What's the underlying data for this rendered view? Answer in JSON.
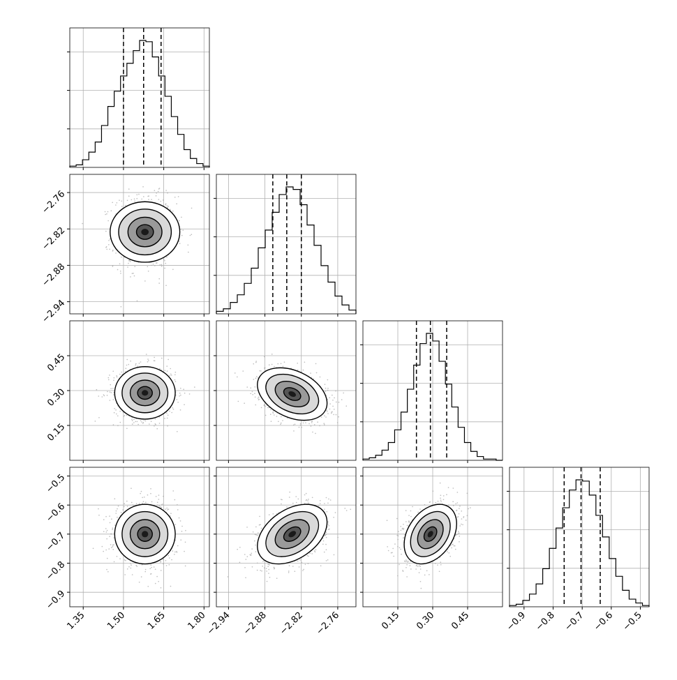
{
  "chart_data": {
    "type": "corner",
    "grid": true,
    "params": [
      {
        "range": [
          1.3,
          1.82
        ],
        "ticks": [
          "1.35",
          "1.50",
          "1.65",
          "1.80"
        ],
        "tick_values": [
          1.35,
          1.5,
          1.65,
          1.8
        ],
        "quantiles": [
          1.5,
          1.575,
          1.64
        ],
        "hist": [
          1,
          2,
          6,
          12,
          20,
          33,
          48,
          60,
          72,
          82,
          92,
          100,
          99,
          87,
          72,
          56,
          40,
          26,
          14,
          7,
          3,
          1
        ]
      },
      {
        "range": [
          -2.96,
          -2.73
        ],
        "ticks": [
          "−2.94",
          "−2.88",
          "−2.82",
          "−2.76"
        ],
        "tick_values": [
          -2.94,
          -2.88,
          -2.82,
          -2.76
        ],
        "quantiles": [
          -2.867,
          -2.844,
          -2.82
        ],
        "hist": [
          2,
          4,
          9,
          15,
          24,
          36,
          52,
          66,
          80,
          94,
          100,
          98,
          86,
          70,
          54,
          38,
          25,
          14,
          7,
          3
        ]
      },
      {
        "range": [
          0.0,
          0.6
        ],
        "ticks": [
          "0.15",
          "0.30",
          "0.45"
        ],
        "tick_values": [
          0.15,
          0.3,
          0.45
        ],
        "quantiles": [
          0.23,
          0.29,
          0.36
        ],
        "hist": [
          1,
          2,
          4,
          8,
          14,
          24,
          38,
          56,
          75,
          92,
          100,
          94,
          78,
          60,
          42,
          26,
          14,
          7,
          3,
          1,
          1,
          0
        ]
      },
      {
        "range": [
          -0.95,
          -0.47
        ],
        "ticks": [
          "−0.9",
          "−0.8",
          "−0.7",
          "−0.6",
          "−0.5"
        ],
        "tick_values": [
          -0.9,
          -0.8,
          -0.7,
          -0.6,
          -0.5
        ],
        "quantiles": [
          -0.762,
          -0.704,
          -0.638
        ],
        "hist": [
          1,
          2,
          5,
          10,
          18,
          30,
          46,
          62,
          78,
          92,
          100,
          99,
          88,
          72,
          55,
          38,
          24,
          13,
          6,
          3,
          1
        ]
      }
    ],
    "pairs": [
      {
        "row": 1,
        "col": 0,
        "center": [
          1.58,
          -2.825
        ],
        "sd": [
          0.055,
          0.028
        ],
        "rho": 0.0
      },
      {
        "row": 2,
        "col": 0,
        "center": [
          1.58,
          0.29
        ],
        "sd": [
          0.055,
          0.055
        ],
        "rho": 0.0
      },
      {
        "row": 2,
        "col": 1,
        "center": [
          -2.835,
          0.285
        ],
        "sd": [
          0.028,
          0.055
        ],
        "rho": -0.35
      },
      {
        "row": 3,
        "col": 0,
        "center": [
          1.58,
          -0.7
        ],
        "sd": [
          0.055,
          0.05
        ],
        "rho": 0.0
      },
      {
        "row": 3,
        "col": 1,
        "center": [
          -2.835,
          -0.7
        ],
        "sd": [
          0.028,
          0.05
        ],
        "rho": 0.4
      },
      {
        "row": 3,
        "col": 2,
        "center": [
          0.29,
          -0.7
        ],
        "sd": [
          0.055,
          0.05
        ],
        "rho": 0.35
      }
    ]
  }
}
